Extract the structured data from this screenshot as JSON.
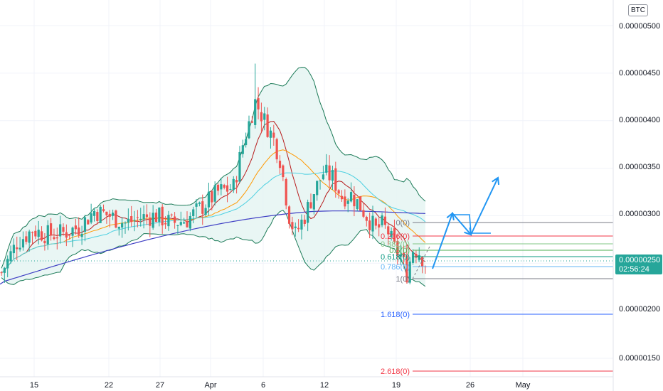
{
  "header": {
    "currency": "BTC"
  },
  "price_axis": {
    "labels": [
      "0.00000500",
      "0.00000450",
      "0.00000400",
      "0.00000350",
      "0.00000300",
      "0.00000200",
      "0.00000150"
    ],
    "last_price": "0.00000250",
    "countdown": "02:56:24"
  },
  "time_axis": {
    "labels": [
      "15",
      "22",
      "27",
      "Apr",
      "6",
      "12",
      "19",
      "26",
      "May"
    ]
  },
  "colors": {
    "up": "#26a69a",
    "down": "#ef5350",
    "bb_band": "#1b7a57",
    "bb_fill": "#e3f4f1",
    "ma_fast": "#b71c1c",
    "ma_mid": "#ff9800",
    "ma_slow": "#4dd0e1",
    "ma_long": "#3f3fc4",
    "arrow": "#2196f3"
  },
  "fib_levels": [
    {
      "label": "0(0)",
      "color": "#787b86"
    },
    {
      "label": "0.236(0)",
      "color": "#f23645"
    },
    {
      "label": "0.382(0)",
      "color": "#81c784"
    },
    {
      "label": "0.5(0)",
      "color": "#4caf50"
    },
    {
      "label": "0.618(0)",
      "color": "#089981"
    },
    {
      "label": "0.786(0)",
      "color": "#64b5f6"
    },
    {
      "label": "1(0)",
      "color": "#787b86"
    },
    {
      "label": "1.618(0)",
      "color": "#2962ff"
    },
    {
      "label": "2.618(0)",
      "color": "#f23645"
    }
  ],
  "chart_data": {
    "type": "candlestick",
    "y_unit": "BTC",
    "ylim": [
      1.3e-06,
      5.1e-06
    ],
    "x_ticks": [
      "15",
      "22",
      "27",
      "Apr",
      "6",
      "12",
      "19",
      "26",
      "May"
    ],
    "close_path": [
      [
        0,
        2.4e-06
      ],
      [
        5,
        2.72e-06
      ],
      [
        10,
        2.85e-06
      ],
      [
        15,
        2.8e-06
      ],
      [
        20,
        2.82e-06
      ],
      [
        25,
        2.88e-06
      ],
      [
        30,
        3.05e-06
      ],
      [
        35,
        3e-06
      ],
      [
        40,
        2.92e-06
      ],
      [
        45,
        2.98e-06
      ],
      [
        50,
        3e-06
      ],
      [
        55,
        2.92e-06
      ],
      [
        60,
        2.96e-06
      ],
      [
        65,
        3.1e-06
      ],
      [
        70,
        3.25e-06
      ],
      [
        75,
        3.3e-06
      ],
      [
        78,
        3.75e-06
      ],
      [
        82,
        4.2e-06
      ],
      [
        85,
        4e-06
      ],
      [
        88,
        3.8e-06
      ],
      [
        90,
        3.6e-06
      ],
      [
        93,
        3e-06
      ],
      [
        95,
        2.8e-06
      ],
      [
        98,
        3e-06
      ],
      [
        101,
        3.25e-06
      ],
      [
        104,
        3.45e-06
      ],
      [
        107,
        3.4e-06
      ],
      [
        110,
        3.2e-06
      ],
      [
        113,
        3.22e-06
      ],
      [
        116,
        3.1e-06
      ],
      [
        119,
        2.95e-06
      ],
      [
        121,
        2.85e-06
      ],
      [
        123,
        2.9e-06
      ],
      [
        125,
        2.83e-06
      ],
      [
        127,
        2.65e-06
      ],
      [
        129,
        2.58e-06
      ],
      [
        131,
        2.4e-06
      ],
      [
        133,
        2.65e-06
      ],
      [
        135,
        2.62e-06
      ],
      [
        137,
        2.5e-06
      ]
    ],
    "series": [
      {
        "name": "Bollinger Bands"
      },
      {
        "name": "MA fast"
      },
      {
        "name": "MA mid"
      },
      {
        "name": "MA slow"
      },
      {
        "name": "MA long"
      }
    ],
    "fib_retracement": {
      "levels": [
        0,
        0.236,
        0.382,
        0.5,
        0.618,
        0.786,
        1,
        1.618,
        2.618
      ]
    },
    "projection_arrows": true
  }
}
